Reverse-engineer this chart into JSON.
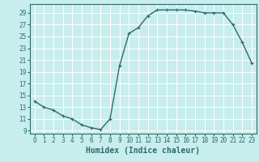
{
  "xlabel": "Humidex (Indice chaleur)",
  "x": [
    0,
    1,
    2,
    3,
    4,
    5,
    6,
    7,
    8,
    9,
    10,
    11,
    12,
    13,
    14,
    15,
    16,
    17,
    18,
    19,
    20,
    21,
    22,
    23
  ],
  "y": [
    14,
    13,
    12.5,
    11.5,
    11,
    10,
    9.5,
    9.2,
    11,
    20,
    25.5,
    26.5,
    28.5,
    29.5,
    29.5,
    29.5,
    29.5,
    29.3,
    29,
    29,
    29,
    27,
    24,
    20.5
  ],
  "line_color": "#2d6b6b",
  "bg_color": "#c8eded",
  "grid_color": "#ffffff",
  "tick_color": "#2d6b6b",
  "xlim": [
    -0.5,
    23.5
  ],
  "ylim": [
    8.5,
    30.5
  ],
  "yticks": [
    9,
    11,
    13,
    15,
    17,
    19,
    21,
    23,
    25,
    27,
    29
  ],
  "xticks": [
    0,
    1,
    2,
    3,
    4,
    5,
    6,
    7,
    8,
    9,
    10,
    11,
    12,
    13,
    14,
    15,
    16,
    17,
    18,
    19,
    20,
    21,
    22,
    23
  ],
  "marker": "+",
  "marker_size": 3,
  "line_width": 1.0,
  "xlabel_fontsize": 7,
  "tick_fontsize": 5.5
}
